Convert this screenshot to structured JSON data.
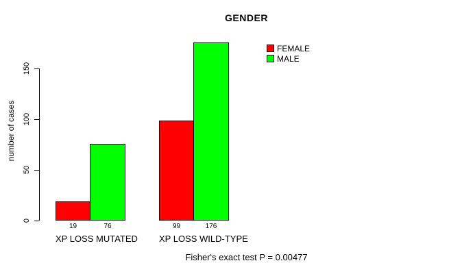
{
  "annotation": "Fisher's exact test P = 0.00477",
  "colors": {
    "female": "#FF0000",
    "male": "#00FF00",
    "axis": "#000000",
    "text": "#000000",
    "background": "#FFFFFF"
  },
  "legend": {
    "items": [
      {
        "label": "FEMALE",
        "color": "#FF0000"
      },
      {
        "label": "MALE",
        "color": "#00FF00"
      }
    ]
  },
  "chart_data": {
    "type": "bar",
    "title": "GENDER",
    "categories": [
      "XP LOSS MUTATED",
      "XP LOSS WILD-TYPE"
    ],
    "series": [
      {
        "name": "FEMALE",
        "color": "#FF0000",
        "values": [
          19,
          99
        ]
      },
      {
        "name": "MALE",
        "color": "#00FF00",
        "values": [
          76,
          176
        ]
      }
    ],
    "bar_labels": [
      [
        19,
        76
      ],
      [
        99,
        176
      ]
    ],
    "xlabel": "",
    "ylabel": "number of cases",
    "yticks": [
      0,
      50,
      100,
      150
    ],
    "ylim": [
      0,
      176
    ],
    "grid": false,
    "legend_position": "top-right-inside",
    "footnote": "Fisher's exact test P = 0.00477"
  }
}
